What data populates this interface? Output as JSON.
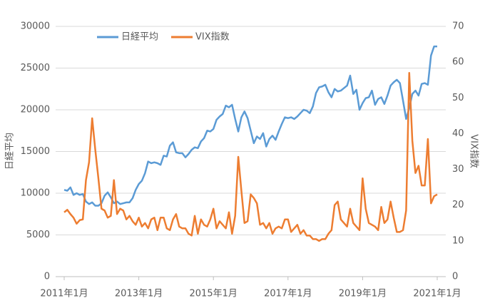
{
  "chart_data": {
    "type": "line",
    "ylabel": "日経平均",
    "y2label": "VIX指数",
    "categories": [
      "2011年1月",
      null,
      null,
      null,
      null,
      null,
      null,
      null,
      null,
      null,
      null,
      null,
      null,
      null,
      null,
      null,
      null,
      null,
      null,
      null,
      null,
      null,
      null,
      null,
      "2013年1月",
      null,
      null,
      null,
      null,
      null,
      null,
      null,
      null,
      null,
      null,
      null,
      null,
      null,
      null,
      null,
      null,
      null,
      null,
      null,
      null,
      null,
      null,
      null,
      "2015年1月",
      null,
      null,
      null,
      null,
      null,
      null,
      null,
      null,
      null,
      null,
      null,
      null,
      null,
      null,
      null,
      null,
      null,
      null,
      null,
      null,
      null,
      null,
      null,
      "2017年1月",
      null,
      null,
      null,
      null,
      null,
      null,
      null,
      null,
      null,
      null,
      null,
      null,
      null,
      null,
      null,
      null,
      null,
      null,
      null,
      null,
      null,
      null,
      null,
      "2019年1月",
      null,
      null,
      null,
      null,
      null,
      null,
      null,
      null,
      null,
      null,
      null,
      null,
      null,
      null,
      null,
      null,
      null,
      null,
      null,
      null,
      null,
      null,
      null,
      "2021年1月"
    ],
    "series": [
      {
        "name": "日経平均",
        "color": "#5b9bd5",
        "axis": "y",
        "values": [
          10400,
          10300,
          10700,
          9800,
          10000,
          9800,
          9900,
          9000,
          8700,
          8900,
          8500,
          8500,
          8800,
          9700,
          10100,
          9500,
          8800,
          9000,
          8700,
          8800,
          8900,
          8900,
          9400,
          10400,
          11100,
          11500,
          12400,
          13800,
          13600,
          13700,
          13600,
          13400,
          14500,
          14400,
          15700,
          16100,
          14900,
          14800,
          14800,
          14300,
          14700,
          15200,
          15500,
          15400,
          16200,
          16600,
          17500,
          17400,
          17700,
          18800,
          19200,
          19500,
          20500,
          20300,
          20600,
          18900,
          17400,
          19100,
          19800,
          19000,
          17500,
          16000,
          16800,
          16500,
          17200,
          15600,
          16500,
          16900,
          16400,
          17400,
          18300,
          19100,
          19000,
          19100,
          18900,
          19200,
          19600,
          20000,
          19900,
          19600,
          20400,
          22000,
          22700,
          22800,
          23000,
          22100,
          21500,
          22500,
          22200,
          22300,
          22600,
          22900,
          24100,
          21900,
          22400,
          20000,
          20800,
          21400,
          21500,
          22300,
          20600,
          21300,
          21500,
          20700,
          21700,
          22900,
          23300,
          23600,
          23200,
          21100,
          18900,
          20200,
          21900,
          22300,
          21700,
          23100,
          23200,
          23000,
          26500,
          27600,
          27600
        ]
      },
      {
        "name": "VIX指数",
        "color": "#ed7d31",
        "axis": "y2",
        "values": [
          18,
          18.7,
          17.5,
          16.5,
          14.8,
          15.8,
          16,
          27,
          32,
          44.3,
          35.5,
          27.5,
          19,
          18.5,
          16.5,
          17,
          27,
          17.5,
          19,
          18.5,
          16,
          17,
          15.5,
          14.5,
          16.5,
          14,
          15,
          13.5,
          16,
          16.5,
          13,
          16.5,
          16.5,
          13.5,
          13,
          16,
          17.5,
          14,
          13.5,
          13.5,
          12,
          11.5,
          17,
          12,
          16,
          14.5,
          14,
          16,
          19,
          13.5,
          15.5,
          14.5,
          13.5,
          18,
          12,
          17,
          33.5,
          24,
          15,
          15.5,
          23,
          22,
          20.5,
          14.5,
          15,
          13.5,
          15,
          12,
          13.5,
          14,
          13.5,
          16,
          16,
          12.5,
          13.5,
          14.5,
          12,
          13,
          11.5,
          11.5,
          10.5,
          10.5,
          10,
          10.5,
          10.5,
          12,
          13,
          20,
          21,
          16,
          15,
          14,
          19,
          15,
          14,
          13,
          27.5,
          19,
          15,
          14.5,
          14,
          13,
          19.5,
          15,
          16,
          21,
          16.5,
          12.5,
          12.5,
          13,
          18.5,
          57,
          38,
          29,
          31,
          25.5,
          25.5,
          38.5,
          20.5,
          22.5,
          23
        ]
      }
    ],
    "ylim": [
      0,
      30000
    ],
    "yticks": [
      0,
      5000,
      10000,
      15000,
      20000,
      25000,
      30000
    ],
    "y2lim": [
      0,
      70
    ],
    "y2ticks": [
      0,
      10,
      20,
      30,
      40,
      50,
      60,
      70
    ],
    "grid": true,
    "legend": "top"
  }
}
